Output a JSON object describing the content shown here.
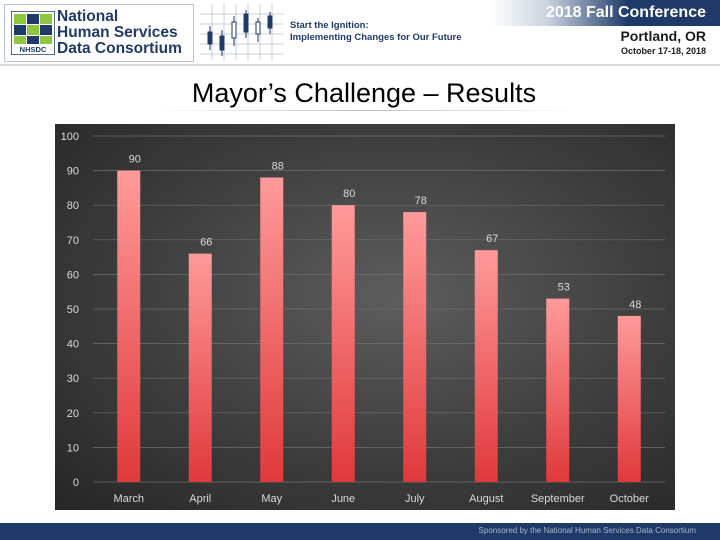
{
  "header": {
    "org_line1": "National",
    "org_line2": "Human Services",
    "org_line3": "Data Consortium",
    "org_abbr": "NHSDC",
    "tagline_line1": "Start the Ignition:",
    "tagline_line2": "Implementing Changes for Our Future",
    "conference_title": "2018 Fall Conference",
    "conference_city": "Portland, OR",
    "conference_dates": "October 17-18, 2018"
  },
  "slide": {
    "title": "Mayor’s Challenge – Results"
  },
  "footer": {
    "text": "Sponsored by the National Human Services Data Consortium"
  },
  "colors": {
    "brand_navy": "#1f3a68",
    "bar_top": "#ff9a9a",
    "bar_bottom": "#e0393b",
    "chart_background": "#3d3d3d",
    "label_color": "#d9d9d9"
  },
  "chart_data": {
    "type": "bar",
    "categories": [
      "March",
      "April",
      "May",
      "June",
      "July",
      "August",
      "September",
      "October"
    ],
    "values": [
      90,
      66,
      88,
      80,
      78,
      67,
      53,
      48
    ],
    "data_labels": [
      "90",
      "66",
      "88",
      "80",
      "78",
      "67",
      "53",
      "48"
    ],
    "ylim": [
      0,
      100
    ],
    "yticks": [
      0,
      10,
      20,
      30,
      40,
      50,
      60,
      70,
      80,
      90,
      100
    ],
    "grid": true,
    "legend": "none"
  }
}
